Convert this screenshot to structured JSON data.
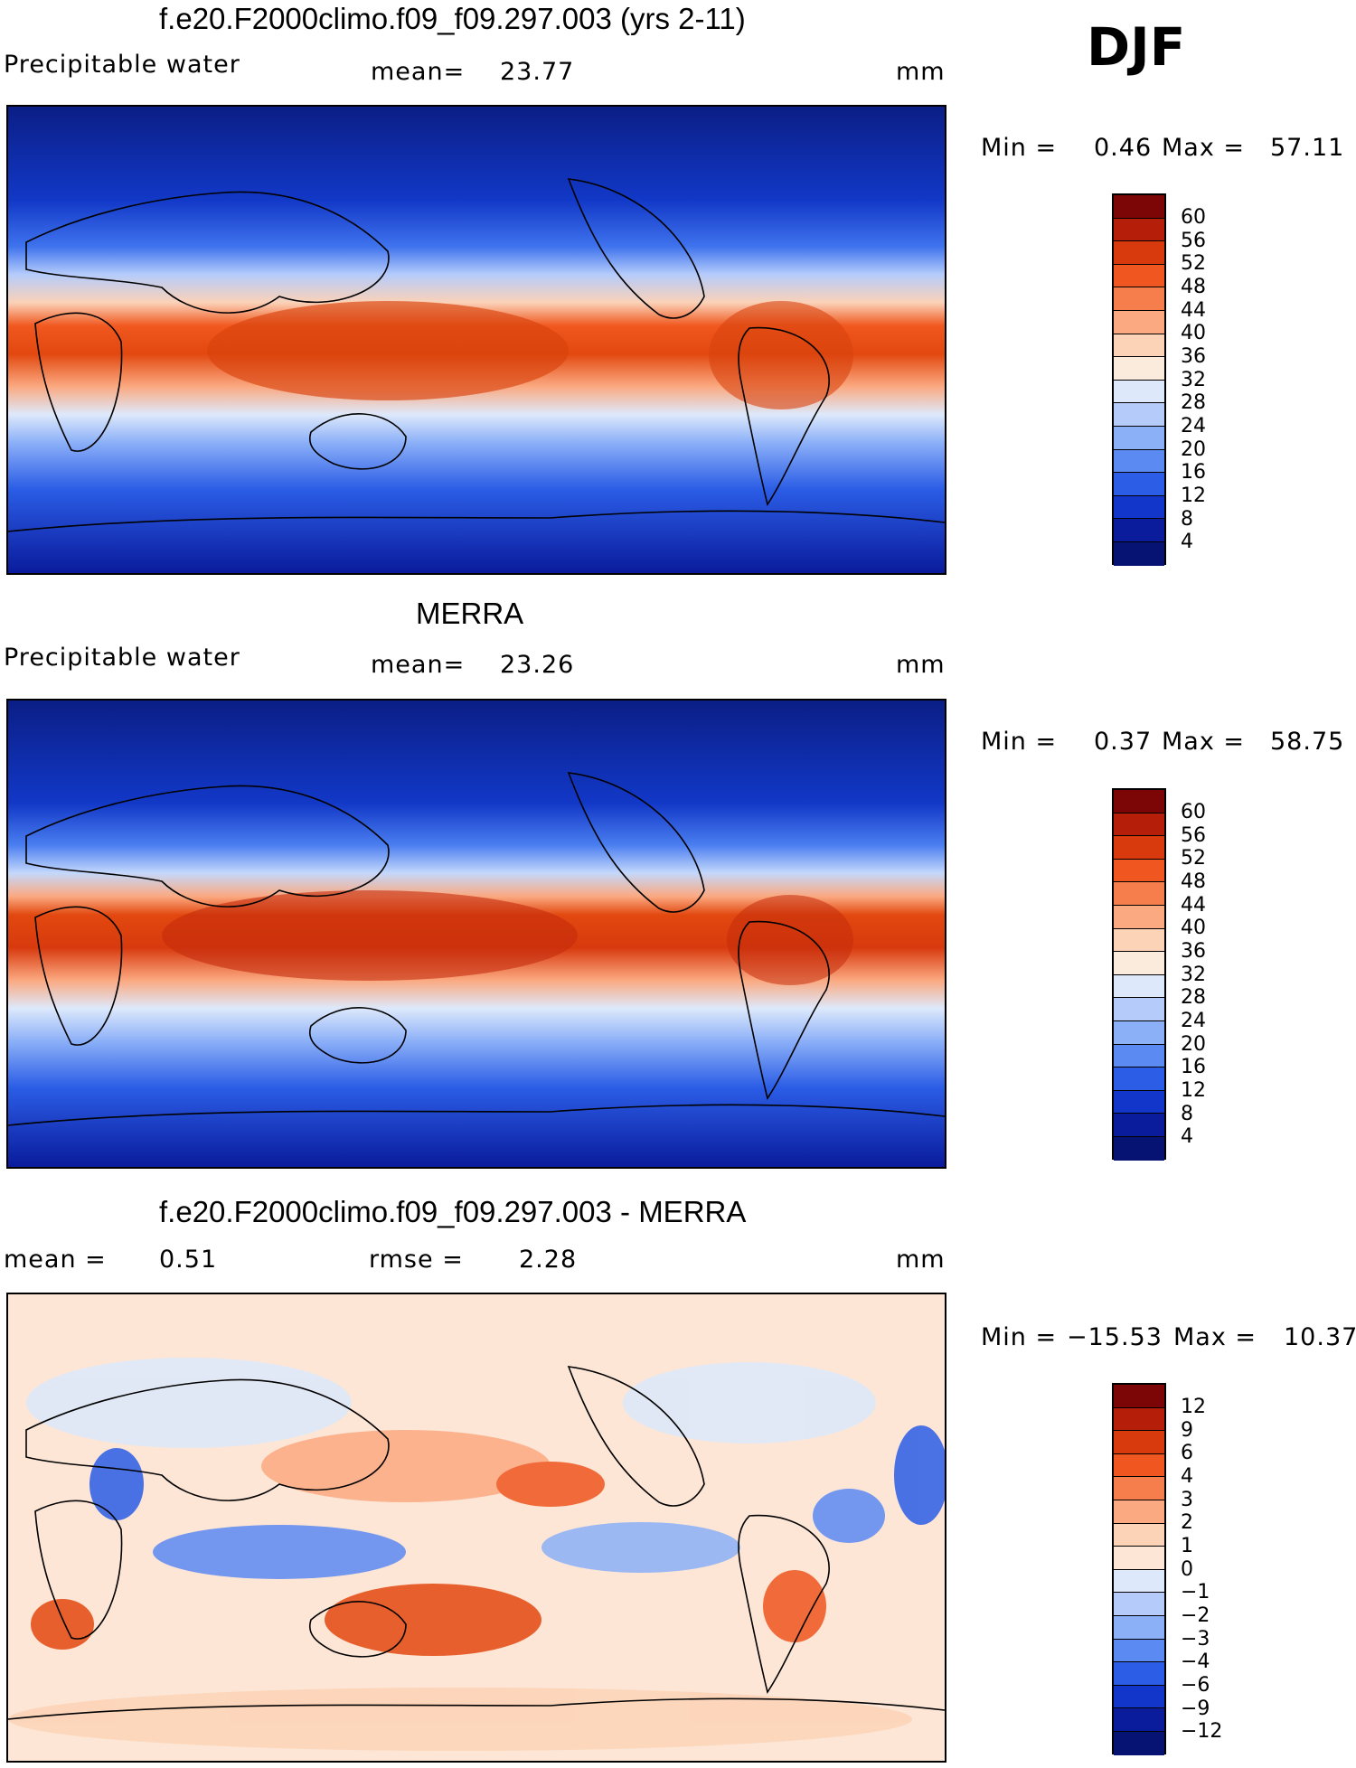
{
  "season": "DJF",
  "colors": {
    "frame": "#000000",
    "background": "#ffffff"
  },
  "panels": [
    {
      "title": "f.e20.F2000climo.f09_f09.297.003 (yrs 2-11)",
      "left_label": "Precipitable water",
      "middle_label": "mean=",
      "middle_value": "23.77",
      "units": "mm",
      "min_label": "Min =",
      "min_value": "0.46",
      "max_label": "Max =",
      "max_value": "57.11",
      "levels": [
        "60",
        "56",
        "52",
        "48",
        "44",
        "40",
        "36",
        "32",
        "28",
        "24",
        "20",
        "16",
        "12",
        "8",
        "4"
      ],
      "palette": [
        "#7c0606",
        "#b51f0a",
        "#d83a0e",
        "#f0561f",
        "#f67d4c",
        "#fba981",
        "#fcd3b6",
        "#fbebdd",
        "#dde9fb",
        "#b5ccfb",
        "#8cb0f8",
        "#5b8af3",
        "#2b5de6",
        "#1236c9",
        "#0a1b9c",
        "#061372"
      ]
    },
    {
      "title": "MERRA",
      "left_label": "Precipitable water",
      "middle_label": "mean=",
      "middle_value": "23.26",
      "units": "mm",
      "min_label": "Min =",
      "min_value": "0.37",
      "max_label": "Max =",
      "max_value": "58.75",
      "levels": [
        "60",
        "56",
        "52",
        "48",
        "44",
        "40",
        "36",
        "32",
        "28",
        "24",
        "20",
        "16",
        "12",
        "8",
        "4"
      ],
      "palette": [
        "#7c0606",
        "#b51f0a",
        "#d83a0e",
        "#f0561f",
        "#f67d4c",
        "#fba981",
        "#fcd3b6",
        "#fbebdd",
        "#dde9fb",
        "#b5ccfb",
        "#8cb0f8",
        "#5b8af3",
        "#2b5de6",
        "#1236c9",
        "#0a1b9c",
        "#061372"
      ]
    },
    {
      "title": "f.e20.F2000climo.f09_f09.297.003 - MERRA",
      "left_label": "mean =",
      "left_value": "0.51",
      "middle_label": "rmse =",
      "middle_value": "2.28",
      "units": "mm",
      "min_label": "Min =",
      "min_value": "−15.53",
      "max_label": "Max =",
      "max_value": "10.37",
      "levels": [
        "12",
        "9",
        "6",
        "4",
        "3",
        "2",
        "1",
        "0",
        "−1",
        "−2",
        "−3",
        "−4",
        "−6",
        "−9",
        "−12"
      ],
      "palette": [
        "#7c0606",
        "#b51f0a",
        "#d83a0e",
        "#f0561f",
        "#f67d4c",
        "#fba981",
        "#fcd3b6",
        "#fde6d6",
        "#dde9fb",
        "#b5ccfb",
        "#8cb0f8",
        "#5b8af3",
        "#2b5de6",
        "#1236c9",
        "#0a1b9c",
        "#061372"
      ]
    }
  ]
}
